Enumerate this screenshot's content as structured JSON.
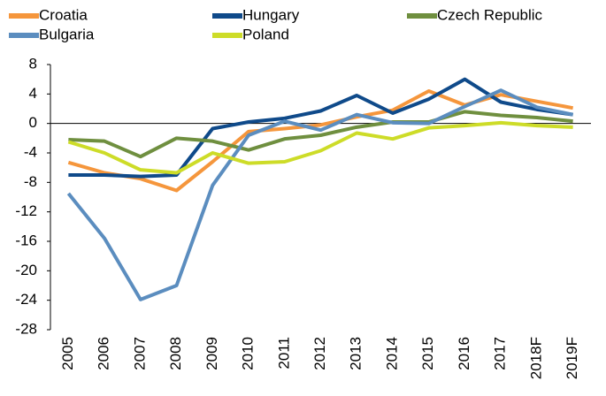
{
  "chart_data": {
    "type": "line",
    "categories": [
      "2005",
      "2006",
      "2007",
      "2008",
      "2009",
      "2010",
      "2011",
      "2012",
      "2013",
      "2014",
      "2015",
      "2016",
      "2017",
      "2018F",
      "2019F"
    ],
    "series": [
      {
        "name": "Croatia",
        "color": "#f5963c",
        "values": [
          -5.3,
          -6.7,
          -7.5,
          -9.1,
          -5.2,
          -1.1,
          -0.7,
          -0.2,
          0.9,
          1.8,
          4.4,
          2.5,
          3.9,
          3.0,
          2.1
        ]
      },
      {
        "name": "Hungary",
        "color": "#0f4a8a",
        "values": [
          -7.0,
          -7.0,
          -7.2,
          -7.0,
          -0.7,
          0.2,
          0.7,
          1.7,
          3.8,
          1.4,
          3.3,
          6.0,
          2.9,
          1.9,
          1.2
        ]
      },
      {
        "name": "Czech Republic",
        "color": "#6f8f3f",
        "values": [
          -2.2,
          -2.4,
          -4.5,
          -2.0,
          -2.4,
          -3.6,
          -2.1,
          -1.6,
          -0.5,
          0.2,
          0.2,
          1.6,
          1.1,
          0.8,
          0.3
        ]
      },
      {
        "name": "Bulgaria",
        "color": "#5b8dbf",
        "values": [
          -9.5,
          -15.6,
          -23.9,
          -22.0,
          -8.4,
          -1.6,
          0.3,
          -0.9,
          1.2,
          0.1,
          0.0,
          2.3,
          4.5,
          2.2,
          1.2
        ]
      },
      {
        "name": "Poland",
        "color": "#cddc28",
        "values": [
          -2.5,
          -4.0,
          -6.3,
          -6.7,
          -4.0,
          -5.4,
          -5.2,
          -3.7,
          -1.3,
          -2.1,
          -0.6,
          -0.3,
          0.1,
          -0.3,
          -0.5
        ]
      }
    ],
    "ylim": [
      -28,
      8
    ],
    "yticks": [
      8,
      4,
      0,
      -4,
      -8,
      -12,
      -16,
      -20,
      -24,
      -28
    ],
    "legend": "top",
    "grid": false
  }
}
